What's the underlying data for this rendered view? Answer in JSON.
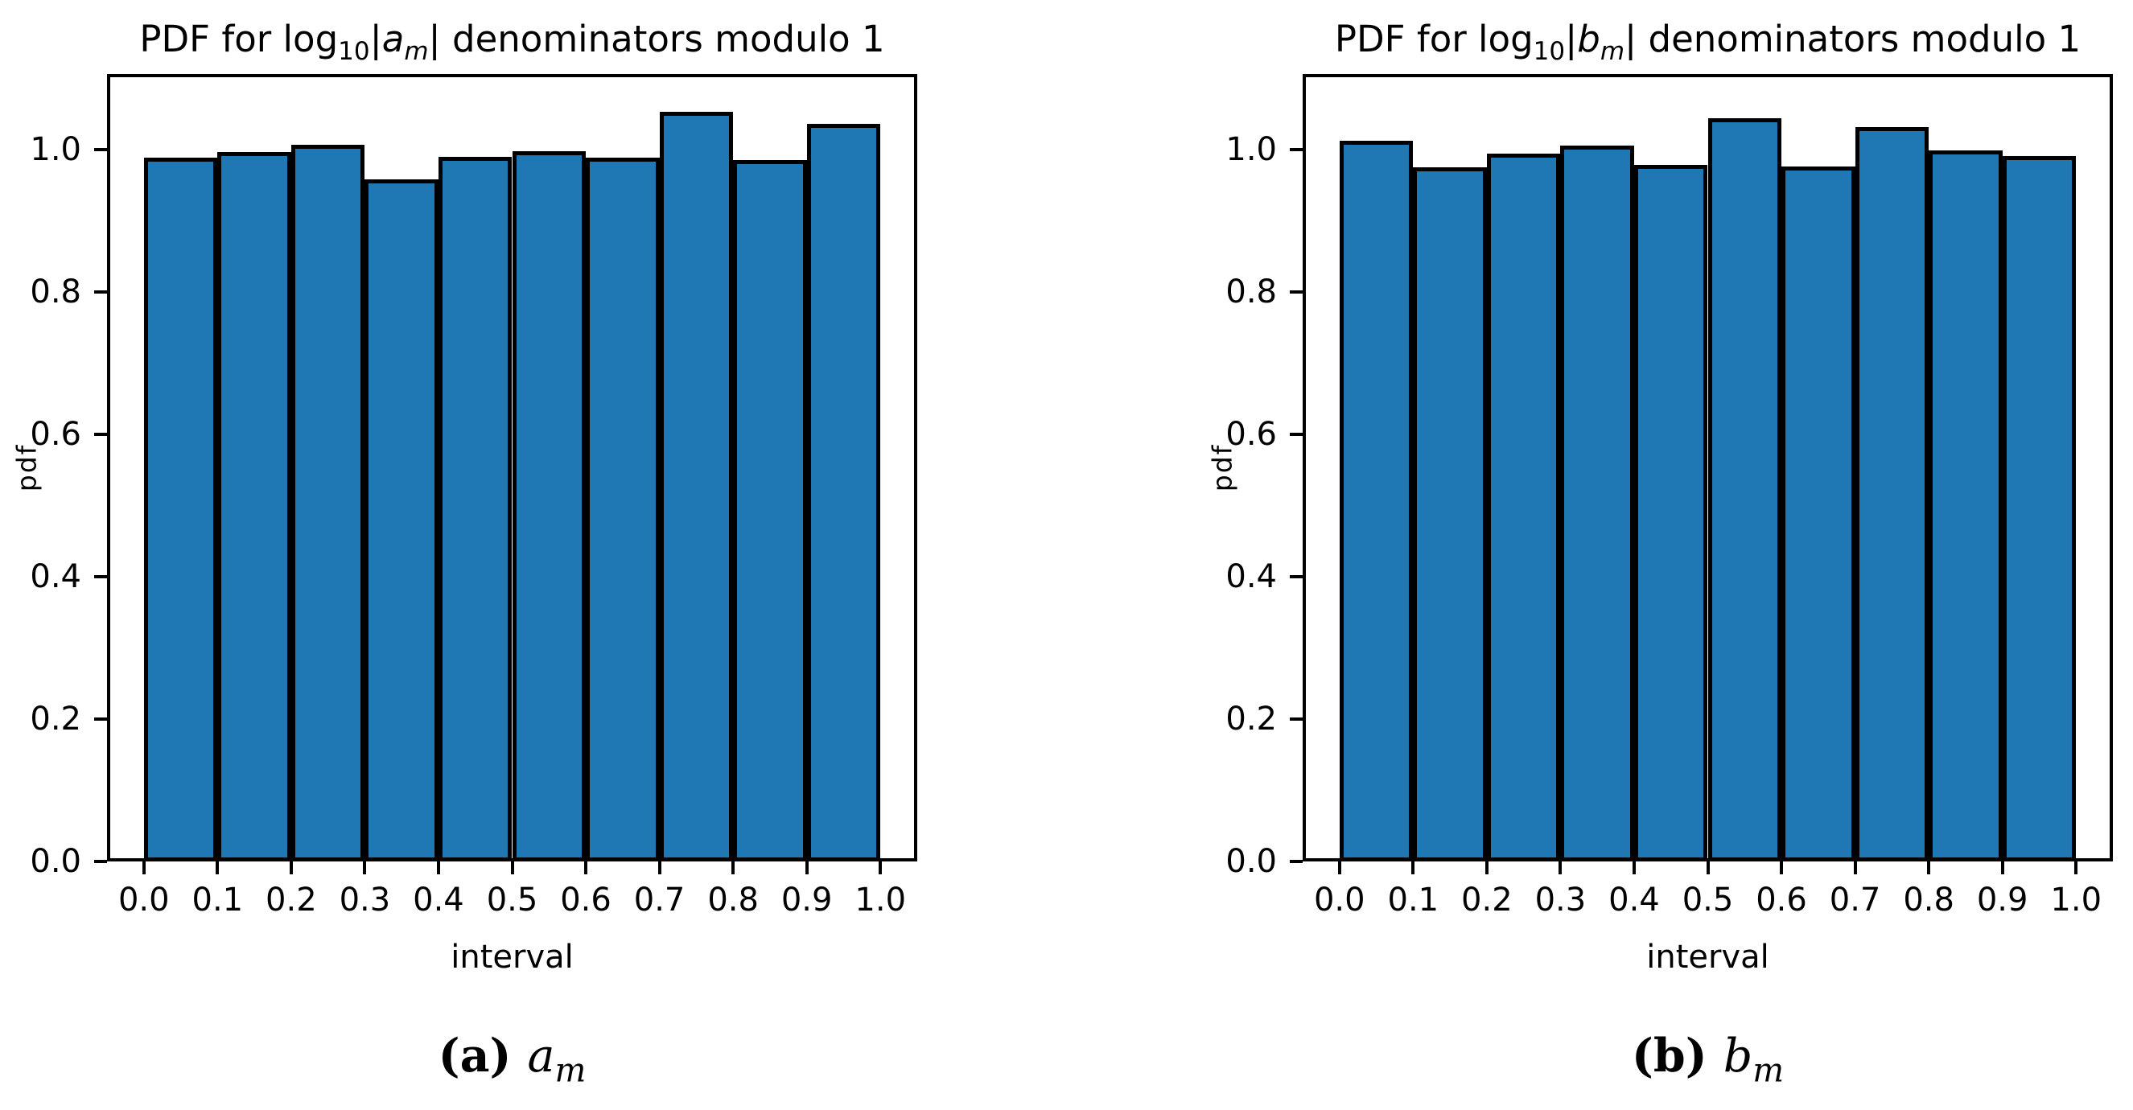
{
  "page": {
    "background": "#ffffff"
  },
  "chart_data": [
    {
      "id": "a",
      "type": "bar",
      "title": "PDF for log10|a_m| denominators modulo 1",
      "title_parts": {
        "prefix": "PDF for log",
        "log_sub": "10",
        "pipe_open": "|",
        "variable": "a",
        "variable_sub": "m",
        "suffix": "| denominators modulo 1"
      },
      "xlabel": "interval",
      "ylabel": "pdf",
      "bin_edges": [
        0.0,
        0.1,
        0.2,
        0.3,
        0.4,
        0.5,
        0.6,
        0.7,
        0.8,
        0.9,
        1.0
      ],
      "values": [
        0.989,
        0.996,
        1.007,
        0.958,
        0.99,
        0.997,
        0.989,
        1.053,
        0.985,
        1.036
      ],
      "xticks": [
        "0.0",
        "0.1",
        "0.2",
        "0.3",
        "0.4",
        "0.5",
        "0.6",
        "0.7",
        "0.8",
        "0.9",
        "1.0"
      ],
      "yticks": [
        "0.0",
        "0.2",
        "0.4",
        "0.6",
        "0.8",
        "1.0"
      ],
      "xlim": [
        -0.05,
        1.05
      ],
      "ylim": [
        0,
        1.106
      ],
      "grid": false,
      "legend": "none",
      "bar_color": "#1f77b4",
      "edge_color": "#000000",
      "caption": "(a) a_m",
      "caption_parts": {
        "label": "(a)",
        "variable": "a",
        "variable_sub": "m"
      }
    },
    {
      "id": "b",
      "type": "bar",
      "title": "PDF for log10|b_m| denominators modulo 1",
      "title_parts": {
        "prefix": "PDF for log",
        "log_sub": "10",
        "pipe_open": "|",
        "variable": "b",
        "variable_sub": "m",
        "suffix": "| denominators modulo 1"
      },
      "xlabel": "interval",
      "ylabel": "pdf",
      "bin_edges": [
        0.0,
        0.1,
        0.2,
        0.3,
        0.4,
        0.5,
        0.6,
        0.7,
        0.8,
        0.9,
        1.0
      ],
      "values": [
        1.012,
        0.975,
        0.994,
        1.005,
        0.978,
        1.044,
        0.976,
        1.031,
        0.999,
        0.991
      ],
      "xticks": [
        "0.0",
        "0.1",
        "0.2",
        "0.3",
        "0.4",
        "0.5",
        "0.6",
        "0.7",
        "0.8",
        "0.9",
        "1.0"
      ],
      "yticks": [
        "0.0",
        "0.2",
        "0.4",
        "0.6",
        "0.8",
        "1.0"
      ],
      "xlim": [
        -0.05,
        1.05
      ],
      "ylim": [
        0,
        1.106
      ],
      "grid": false,
      "legend": "none",
      "bar_color": "#1f77b4",
      "edge_color": "#000000",
      "caption": "(b) b_m",
      "caption_parts": {
        "label": "(b)",
        "variable": "b",
        "variable_sub": "m"
      }
    }
  ]
}
